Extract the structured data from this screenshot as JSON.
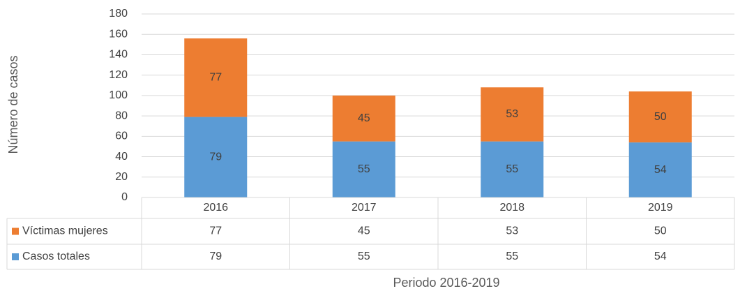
{
  "chart_data": {
    "type": "stacked_bar",
    "x_label": "Periodo 2016-2019",
    "y_label": "Número de casos",
    "categories": [
      "2016",
      "2017",
      "2018",
      "2019"
    ],
    "series": [
      {
        "name": "Casos totales",
        "color": "#5b9bd5",
        "values": [
          79,
          55,
          55,
          54
        ]
      },
      {
        "name": "Víctimas mujeres",
        "color": "#ed7d31",
        "values": [
          77,
          45,
          53,
          50
        ]
      }
    ],
    "ylim": [
      0,
      180
    ],
    "yticks": [
      0,
      20,
      40,
      60,
      80,
      100,
      120,
      140,
      160,
      180
    ],
    "grid": true,
    "data_table": true
  }
}
